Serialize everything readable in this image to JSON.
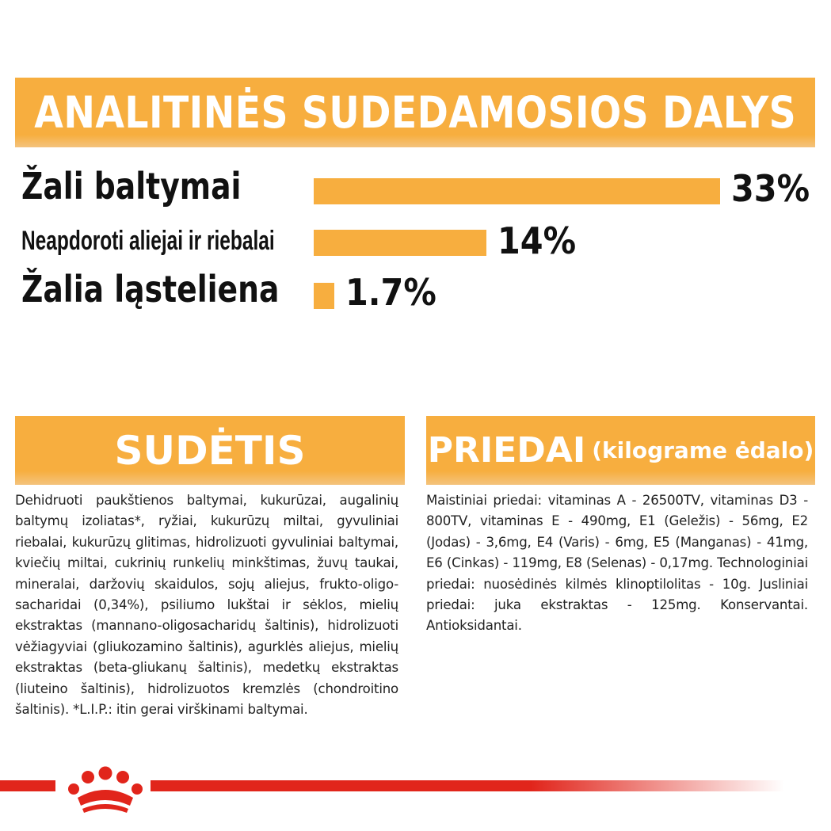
{
  "analytic": {
    "title": "ANALITINĖS SUDEDAMOSIOS DALYS",
    "rows": [
      {
        "label": "Žali baltymai",
        "value_text": "33%",
        "percent": 33
      },
      {
        "label": "Neapdoroti aliejai ir riebalai",
        "value_text": "14%",
        "percent": 14
      },
      {
        "label": "Žalia ląsteliena",
        "value_text": "1.7%",
        "percent": 1.7
      }
    ]
  },
  "composition": {
    "title": "SUDĖTIS",
    "text": "Dehidruoti paukštienos baltymai, kukurūzai, augalinių baltymų izoliatas*, ryžiai, kukurūzų miltai, gyvuliniai riebalai, kukurūzų glitimas, hidrolizuoti gyvuliniai baltymai, kviečių miltai, cukrinių runkelių minkštimas, žuvų taukai, mineralai, daržovių skaidulos, sojų aliejus, frukto-oligo-sacharidai (0,34%), psiliumo lukštai ir sėklos, mielių ekstraktas (mannano-oligosacharidų šaltinis), hidrolizuoti vėžiagyviai (gliukozamino šaltinis), agurklės aliejus, mielių ekstraktas (beta-gliukanų šaltinis), medetkų ekstraktas (liuteino šaltinis), hidrolizuotos kremzlės (chondroitino šaltinis). *L.I.P.: itin gerai virškinami baltymai."
  },
  "additives": {
    "title": "PRIEDAI",
    "subtitle": "(kilograme ėdalo)",
    "text": "Maistiniai priedai: vitaminas A - 26500TV, vitaminas D3 - 800TV, vitaminas E - 490mg, E1 (Geležis) - 56mg, E2 (Jodas) - 3,6mg, E4 (Varis) - 6mg, E5 (Manganas) - 41mg, E6 (Cinkas) - 119mg, E8 (Selenas) - 0,17mg. Technologiniai priedai: nuosėdinės kilmės klinoptilolitas - 10g. Jusliniai priedai: juka ekstraktas - 125mg. Konservantai. Antioksidantai."
  },
  "colors": {
    "accent": "#f7ae3f",
    "brand_red": "#e1251b",
    "text": "#111111"
  },
  "logo": {
    "icon": "royal-canin-crown-icon"
  }
}
